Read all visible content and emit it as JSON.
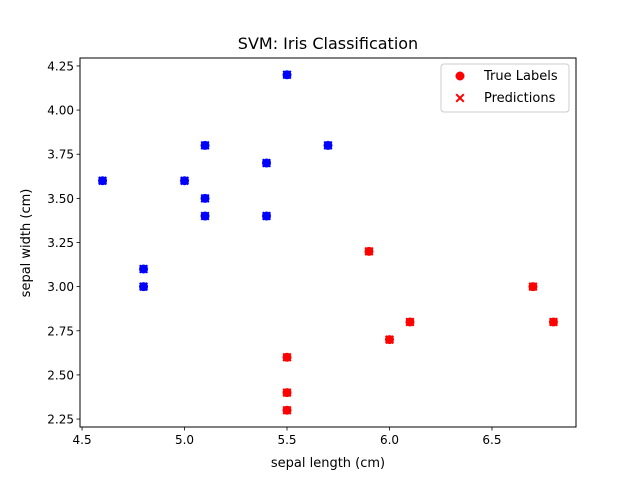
{
  "chart_data": {
    "type": "scatter",
    "title": "SVM: Iris Classification",
    "xlabel": "sepal length (cm)",
    "ylabel": "sepal width (cm)",
    "xlim": [
      4.49,
      6.91
    ],
    "ylim": [
      2.205,
      4.295
    ],
    "xticks": [
      "4.5",
      "5.0",
      "5.5",
      "6.0",
      "6.5"
    ],
    "yticks": [
      "2.25",
      "2.50",
      "2.75",
      "3.00",
      "3.25",
      "3.50",
      "3.75",
      "4.00",
      "4.25"
    ],
    "grid": false,
    "legend_position": "top-right",
    "colors": {
      "class_0": "#0000ff",
      "class_1": "#ff0000",
      "legend_marker": "#ff0000"
    },
    "series": [
      {
        "name": "True Labels",
        "marker": "circle"
      },
      {
        "name": "Predictions",
        "marker": "x"
      }
    ],
    "points": [
      {
        "x": 5.5,
        "y": 4.2,
        "label": 0,
        "pred": 0
      },
      {
        "x": 5.1,
        "y": 3.8,
        "label": 0,
        "pred": 0
      },
      {
        "x": 5.7,
        "y": 3.8,
        "label": 0,
        "pred": 0
      },
      {
        "x": 5.4,
        "y": 3.7,
        "label": 0,
        "pred": 0
      },
      {
        "x": 4.6,
        "y": 3.6,
        "label": 0,
        "pred": 0
      },
      {
        "x": 5.0,
        "y": 3.6,
        "label": 0,
        "pred": 0
      },
      {
        "x": 5.1,
        "y": 3.5,
        "label": 0,
        "pred": 0
      },
      {
        "x": 5.1,
        "y": 3.4,
        "label": 0,
        "pred": 0
      },
      {
        "x": 5.4,
        "y": 3.4,
        "label": 0,
        "pred": 0
      },
      {
        "x": 4.8,
        "y": 3.1,
        "label": 0,
        "pred": 0
      },
      {
        "x": 4.8,
        "y": 3.0,
        "label": 0,
        "pred": 0
      },
      {
        "x": 5.9,
        "y": 3.2,
        "label": 1,
        "pred": 1
      },
      {
        "x": 6.7,
        "y": 3.0,
        "label": 1,
        "pred": 1
      },
      {
        "x": 6.1,
        "y": 2.8,
        "label": 1,
        "pred": 1
      },
      {
        "x": 6.8,
        "y": 2.8,
        "label": 1,
        "pred": 1
      },
      {
        "x": 6.0,
        "y": 2.7,
        "label": 1,
        "pred": 1
      },
      {
        "x": 5.5,
        "y": 2.6,
        "label": 1,
        "pred": 1
      },
      {
        "x": 5.5,
        "y": 2.4,
        "label": 1,
        "pred": 1
      },
      {
        "x": 5.5,
        "y": 2.3,
        "label": 1,
        "pred": 1
      }
    ]
  }
}
